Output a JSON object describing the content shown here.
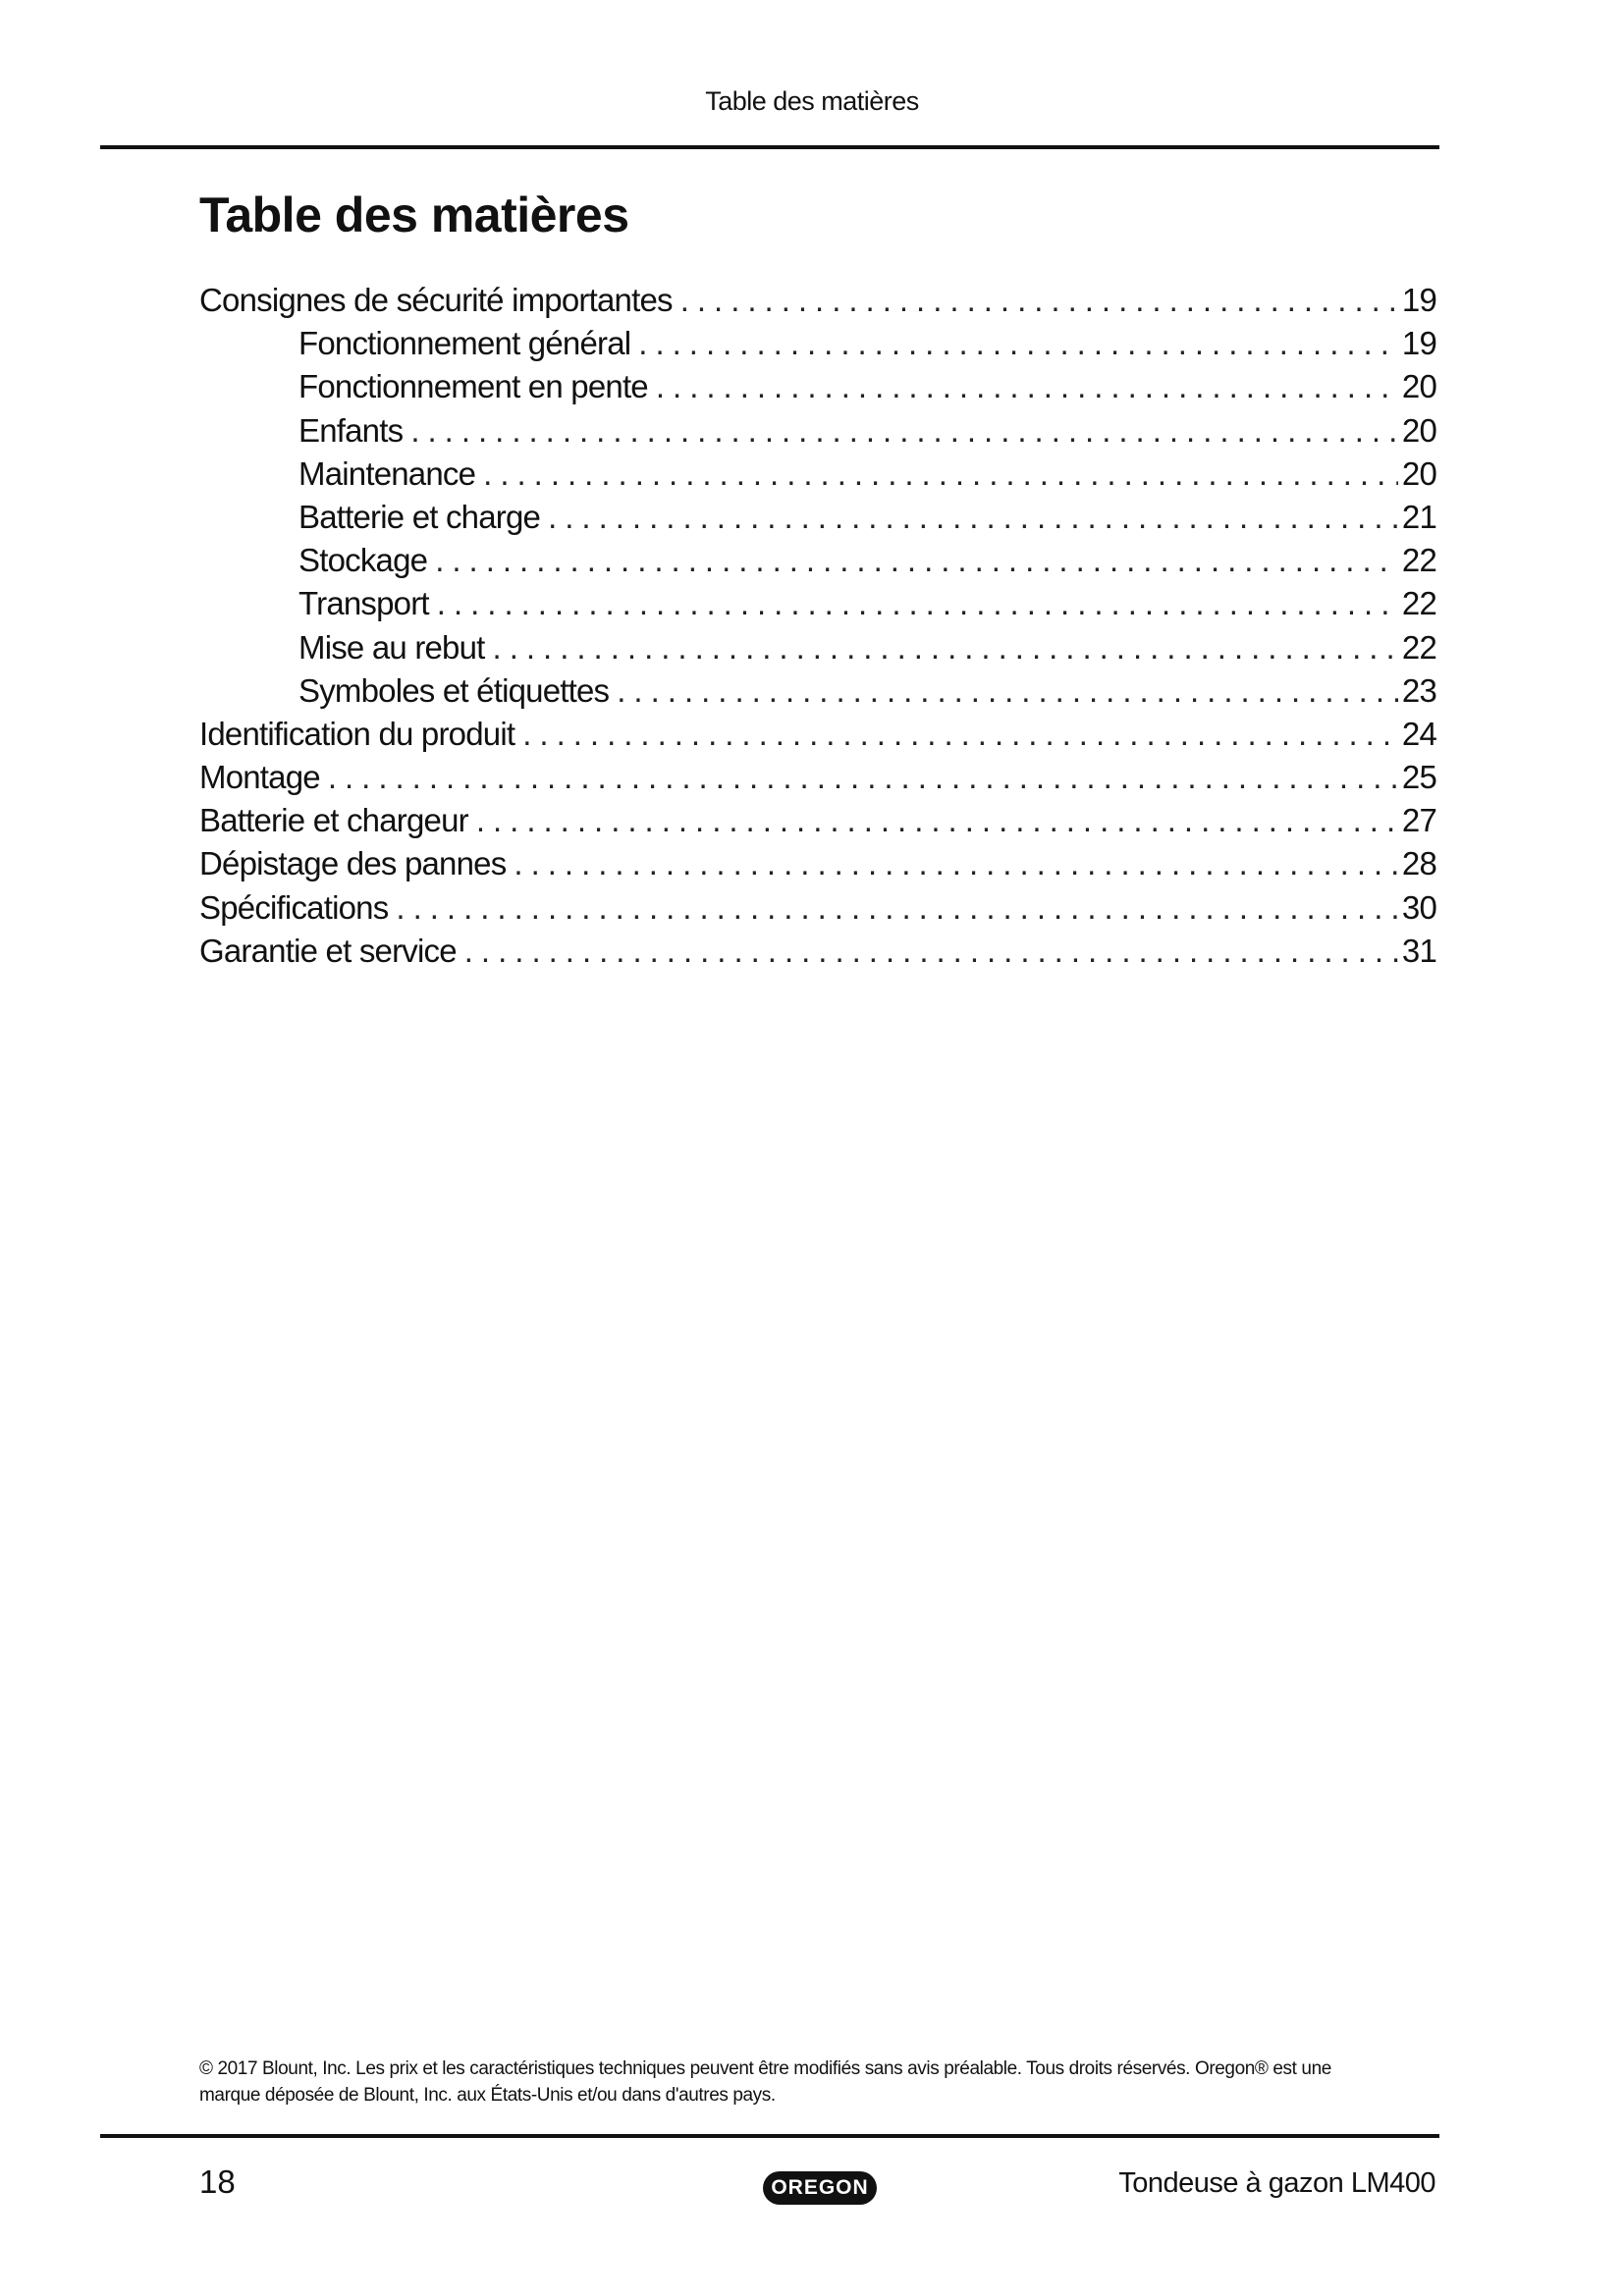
{
  "header": {
    "running_title": "Table des matières"
  },
  "title": "Table des matières",
  "toc": [
    {
      "label": "Consignes de sécurité importantes",
      "page": "19",
      "level": 1
    },
    {
      "label": "Fonctionnement général",
      "page": "19",
      "level": 2
    },
    {
      "label": "Fonctionnement en pente",
      "page": "20",
      "level": 2
    },
    {
      "label": "Enfants",
      "page": "20",
      "level": 2
    },
    {
      "label": "Maintenance",
      "page": "20",
      "level": 2
    },
    {
      "label": "Batterie et charge",
      "page": "21",
      "level": 2
    },
    {
      "label": "Stockage",
      "page": "22",
      "level": 2
    },
    {
      "label": "Transport",
      "page": "22",
      "level": 2
    },
    {
      "label": "Mise au rebut",
      "page": "22",
      "level": 2
    },
    {
      "label": "Symboles et étiquettes",
      "page": "23",
      "level": 2
    },
    {
      "label": "Identification du produit",
      "page": "24",
      "level": 1
    },
    {
      "label": "Montage",
      "page": "25",
      "level": 1
    },
    {
      "label": "Batterie et chargeur",
      "page": "27",
      "level": 1
    },
    {
      "label": "Dépistage des pannes",
      "page": "28",
      "level": 1
    },
    {
      "label": "Spécifications",
      "page": "30",
      "level": 1
    },
    {
      "label": "Garantie et service",
      "page": "31",
      "level": 1
    }
  ],
  "footer": {
    "copyright_line1": "© 2017 Blount, Inc. Les prix et les caractéristiques techniques peuvent être modifiés sans avis préalable. Tous droits réservés. Oregon® est une",
    "copyright_line2": "marque déposée de Blount, Inc. aux États-Unis et/ou dans d'autres pays.",
    "page_number": "18",
    "logo_text": "OREGON",
    "product": "Tondeuse à gazon LM400"
  }
}
